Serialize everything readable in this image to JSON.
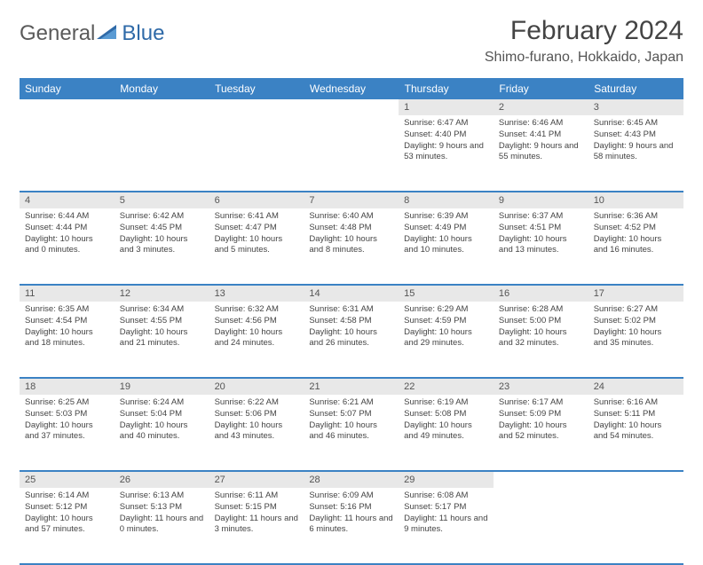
{
  "brand": {
    "name1": "General",
    "name2": "Blue"
  },
  "title": "February 2024",
  "location": "Shimo-furano, Hokkaido, Japan",
  "colors": {
    "accent": "#3b82c4",
    "header_bg": "#3b82c4",
    "daynum_bg": "#e8e8e8",
    "text": "#444444"
  },
  "day_headers": [
    "Sunday",
    "Monday",
    "Tuesday",
    "Wednesday",
    "Thursday",
    "Friday",
    "Saturday"
  ],
  "weeks": [
    [
      null,
      null,
      null,
      null,
      {
        "n": "1",
        "sr": "6:47 AM",
        "ss": "4:40 PM",
        "dl": "9 hours and 53 minutes."
      },
      {
        "n": "2",
        "sr": "6:46 AM",
        "ss": "4:41 PM",
        "dl": "9 hours and 55 minutes."
      },
      {
        "n": "3",
        "sr": "6:45 AM",
        "ss": "4:43 PM",
        "dl": "9 hours and 58 minutes."
      }
    ],
    [
      {
        "n": "4",
        "sr": "6:44 AM",
        "ss": "4:44 PM",
        "dl": "10 hours and 0 minutes."
      },
      {
        "n": "5",
        "sr": "6:42 AM",
        "ss": "4:45 PM",
        "dl": "10 hours and 3 minutes."
      },
      {
        "n": "6",
        "sr": "6:41 AM",
        "ss": "4:47 PM",
        "dl": "10 hours and 5 minutes."
      },
      {
        "n": "7",
        "sr": "6:40 AM",
        "ss": "4:48 PM",
        "dl": "10 hours and 8 minutes."
      },
      {
        "n": "8",
        "sr": "6:39 AM",
        "ss": "4:49 PM",
        "dl": "10 hours and 10 minutes."
      },
      {
        "n": "9",
        "sr": "6:37 AM",
        "ss": "4:51 PM",
        "dl": "10 hours and 13 minutes."
      },
      {
        "n": "10",
        "sr": "6:36 AM",
        "ss": "4:52 PM",
        "dl": "10 hours and 16 minutes."
      }
    ],
    [
      {
        "n": "11",
        "sr": "6:35 AM",
        "ss": "4:54 PM",
        "dl": "10 hours and 18 minutes."
      },
      {
        "n": "12",
        "sr": "6:34 AM",
        "ss": "4:55 PM",
        "dl": "10 hours and 21 minutes."
      },
      {
        "n": "13",
        "sr": "6:32 AM",
        "ss": "4:56 PM",
        "dl": "10 hours and 24 minutes."
      },
      {
        "n": "14",
        "sr": "6:31 AM",
        "ss": "4:58 PM",
        "dl": "10 hours and 26 minutes."
      },
      {
        "n": "15",
        "sr": "6:29 AM",
        "ss": "4:59 PM",
        "dl": "10 hours and 29 minutes."
      },
      {
        "n": "16",
        "sr": "6:28 AM",
        "ss": "5:00 PM",
        "dl": "10 hours and 32 minutes."
      },
      {
        "n": "17",
        "sr": "6:27 AM",
        "ss": "5:02 PM",
        "dl": "10 hours and 35 minutes."
      }
    ],
    [
      {
        "n": "18",
        "sr": "6:25 AM",
        "ss": "5:03 PM",
        "dl": "10 hours and 37 minutes."
      },
      {
        "n": "19",
        "sr": "6:24 AM",
        "ss": "5:04 PM",
        "dl": "10 hours and 40 minutes."
      },
      {
        "n": "20",
        "sr": "6:22 AM",
        "ss": "5:06 PM",
        "dl": "10 hours and 43 minutes."
      },
      {
        "n": "21",
        "sr": "6:21 AM",
        "ss": "5:07 PM",
        "dl": "10 hours and 46 minutes."
      },
      {
        "n": "22",
        "sr": "6:19 AM",
        "ss": "5:08 PM",
        "dl": "10 hours and 49 minutes."
      },
      {
        "n": "23",
        "sr": "6:17 AM",
        "ss": "5:09 PM",
        "dl": "10 hours and 52 minutes."
      },
      {
        "n": "24",
        "sr": "6:16 AM",
        "ss": "5:11 PM",
        "dl": "10 hours and 54 minutes."
      }
    ],
    [
      {
        "n": "25",
        "sr": "6:14 AM",
        "ss": "5:12 PM",
        "dl": "10 hours and 57 minutes."
      },
      {
        "n": "26",
        "sr": "6:13 AM",
        "ss": "5:13 PM",
        "dl": "11 hours and 0 minutes."
      },
      {
        "n": "27",
        "sr": "6:11 AM",
        "ss": "5:15 PM",
        "dl": "11 hours and 3 minutes."
      },
      {
        "n": "28",
        "sr": "6:09 AM",
        "ss": "5:16 PM",
        "dl": "11 hours and 6 minutes."
      },
      {
        "n": "29",
        "sr": "6:08 AM",
        "ss": "5:17 PM",
        "dl": "11 hours and 9 minutes."
      },
      null,
      null
    ]
  ],
  "labels": {
    "sunrise": "Sunrise:",
    "sunset": "Sunset:",
    "daylight": "Daylight:"
  }
}
